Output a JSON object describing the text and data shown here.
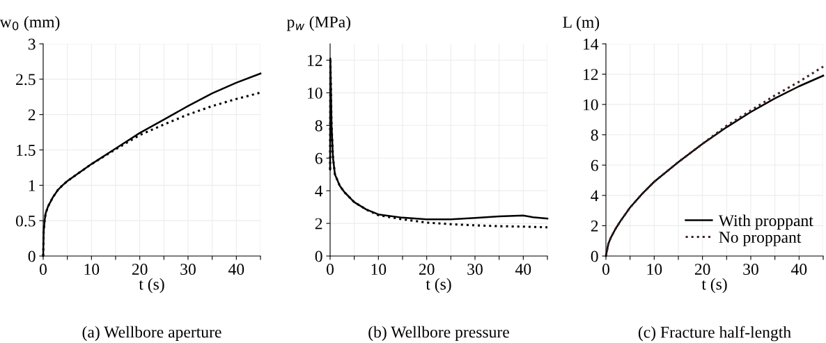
{
  "chart_data": [
    {
      "type": "line",
      "title": "(a) Wellbore aperture",
      "xlabel": "t (s)",
      "ylabel": "w$_{0}$ (mm)",
      "xlim": [
        0,
        45
      ],
      "ylim": [
        0,
        3
      ],
      "xticks": [
        0,
        {
          "value": 5,
          "label": null
        },
        10,
        {
          "value": 15,
          "label": null
        },
        20,
        {
          "value": 25,
          "label": null
        },
        30,
        {
          "value": 35,
          "label": null
        },
        40,
        {
          "value": 45,
          "label": null
        }
      ],
      "yticks": [
        0,
        0.5,
        1,
        1.5,
        2,
        2.5,
        3
      ],
      "grid": true,
      "legend": false,
      "series": [
        {
          "color": "#000000",
          "line_style": "solid",
          "x": [
            0,
            0.1,
            0.3,
            0.5,
            1,
            2,
            3,
            4,
            5,
            7.5,
            10,
            15,
            20,
            25,
            30,
            35,
            40,
            45
          ],
          "values": [
            0,
            0.35,
            0.5,
            0.6,
            0.7,
            0.83,
            0.93,
            1.0,
            1.06,
            1.18,
            1.3,
            1.52,
            1.74,
            1.93,
            2.12,
            2.3,
            2.45,
            2.58
          ]
        },
        {
          "color": "#000000",
          "line_style": "dotted",
          "x": [
            0,
            0.1,
            0.3,
            0.5,
            1,
            2,
            3,
            4,
            5,
            7.5,
            10,
            15,
            20,
            25,
            30,
            35,
            40,
            45
          ],
          "values": [
            0,
            0.35,
            0.5,
            0.6,
            0.7,
            0.83,
            0.93,
            1.0,
            1.06,
            1.18,
            1.3,
            1.51,
            1.71,
            1.86,
            2.0,
            2.12,
            2.22,
            2.31
          ]
        }
      ]
    },
    {
      "type": "line",
      "title": "(b) Wellbore pressure",
      "xlabel": "t (s)",
      "ylabel": "p$_{w}$ (MPa)",
      "xlim": [
        0,
        45
      ],
      "ylim": [
        0,
        13
      ],
      "xticks": [
        0,
        {
          "value": 5,
          "label": null
        },
        10,
        {
          "value": 15,
          "label": null
        },
        20,
        {
          "value": 25,
          "label": null
        },
        30,
        {
          "value": 35,
          "label": null
        },
        40,
        {
          "value": 45,
          "label": null
        }
      ],
      "yticks": [
        0,
        2,
        4,
        6,
        8,
        10,
        12
      ],
      "grid": true,
      "legend": false,
      "series": [
        {
          "color": "#000000",
          "line_style": "solid",
          "x": [
            0,
            0.05,
            0.3,
            0.6,
            1,
            2,
            3,
            5,
            7.5,
            10,
            15,
            20,
            25,
            30,
            35,
            40,
            42,
            45
          ],
          "values": [
            5.3,
            12.1,
            8,
            6,
            5,
            4.3,
            3.9,
            3.3,
            2.85,
            2.55,
            2.35,
            2.25,
            2.25,
            2.33,
            2.43,
            2.48,
            2.38,
            2.3
          ]
        },
        {
          "color": "#000000",
          "line_style": "dotted",
          "x": [
            0,
            0.05,
            0.3,
            0.6,
            1,
            2,
            3,
            5,
            7.5,
            10,
            15,
            20,
            25,
            30,
            35,
            40,
            45
          ],
          "values": [
            5.3,
            12.1,
            8,
            6,
            5,
            4.3,
            3.9,
            3.3,
            2.85,
            2.5,
            2.25,
            2.05,
            1.95,
            1.88,
            1.83,
            1.8,
            1.76
          ]
        }
      ]
    },
    {
      "type": "line",
      "title": "(c) Fracture half-length",
      "xlabel": "t (s)",
      "ylabel": "L (m)",
      "xlim": [
        0,
        45
      ],
      "ylim": [
        0,
        14
      ],
      "xticks": [
        0,
        {
          "value": 5,
          "label": null
        },
        10,
        {
          "value": 15,
          "label": null
        },
        20,
        {
          "value": 25,
          "label": null
        },
        30,
        {
          "value": 35,
          "label": null
        },
        40,
        {
          "value": 45,
          "label": null
        }
      ],
      "yticks": [
        0,
        2,
        4,
        6,
        8,
        10,
        12,
        14
      ],
      "grid": true,
      "legend": "bottom right",
      "series": [
        {
          "name": "With proppant",
          "color": "#000000",
          "line_style": "solid",
          "x": [
            0,
            0.5,
            1,
            2,
            3,
            5,
            7.5,
            10,
            15,
            20,
            25,
            30,
            35,
            40,
            45
          ],
          "values": [
            0,
            0.8,
            1.2,
            1.8,
            2.3,
            3.2,
            4.1,
            4.9,
            6.2,
            7.4,
            8.5,
            9.5,
            10.4,
            11.2,
            11.9
          ]
        },
        {
          "name": "No proppant",
          "color": "#402020",
          "line_style": "dotted",
          "x": [
            0,
            0.5,
            1,
            2,
            3,
            5,
            7.5,
            10,
            15,
            20,
            25,
            30,
            35,
            40,
            45
          ],
          "values": [
            0,
            0.8,
            1.2,
            1.8,
            2.3,
            3.2,
            4.1,
            4.9,
            6.2,
            7.4,
            8.6,
            9.6,
            10.6,
            11.5,
            12.5
          ]
        }
      ]
    }
  ]
}
